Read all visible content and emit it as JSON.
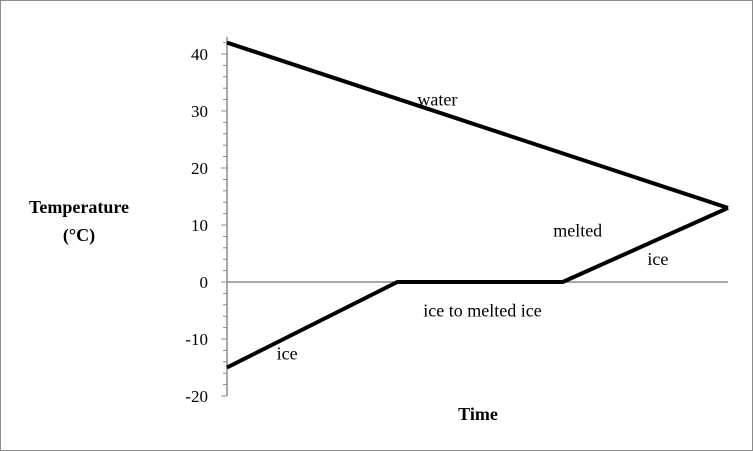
{
  "chart_data": {
    "type": "line",
    "title": "",
    "xlabel": "Time",
    "ylabel_lines": [
      "Temperature",
      "(°C)"
    ],
    "ylim": [
      -20,
      43
    ],
    "xlim": [
      0,
      100
    ],
    "yticks": [
      -20,
      -10,
      0,
      10,
      20,
      30,
      40
    ],
    "grid": false,
    "series": [
      {
        "x": [
          0,
          100
        ],
        "y": [
          42,
          13
        ]
      },
      {
        "x": [
          0,
          34,
          67,
          100
        ],
        "y": [
          -15,
          0,
          0,
          13
        ]
      }
    ],
    "annotations": [
      {
        "text": "water",
        "x": 42,
        "y": 32
      },
      {
        "text": "melted",
        "x": 70,
        "y": 9
      },
      {
        "text": "ice",
        "x": 86,
        "y": 4
      },
      {
        "text": "ice to melted ice",
        "x": 51,
        "y": -5
      },
      {
        "text": "ice",
        "x": 12,
        "y": -12.5
      }
    ]
  }
}
